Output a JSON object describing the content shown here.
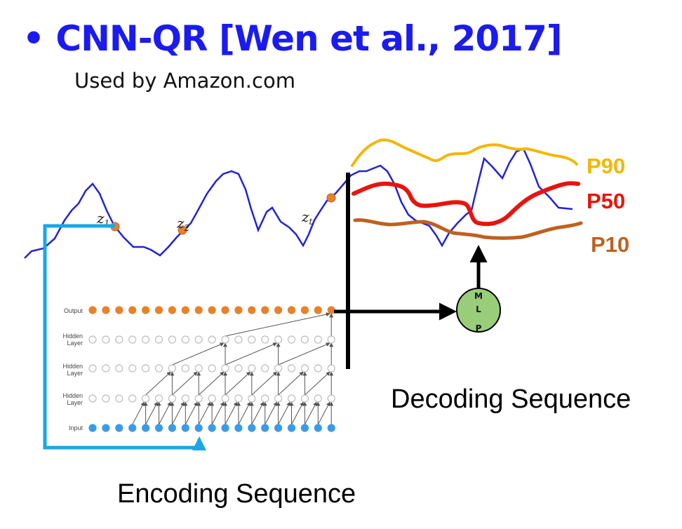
{
  "slide": {
    "bullet": "•",
    "title": "CNN-QR [Wen et al., 2017]",
    "subtitle": "Used by Amazon.com",
    "encoding_label": "Encoding Sequence",
    "decoding_label": "Decoding Sequence"
  },
  "series_points": [
    {
      "letter": "z",
      "sub": "1"
    },
    {
      "letter": "z",
      "sub": "2"
    },
    {
      "letter": "z",
      "sub": "t"
    }
  ],
  "network": {
    "layers": [
      "Output",
      "Hidden Layer",
      "Hidden Layer",
      "Hidden Layer",
      "Input"
    ],
    "nodes_per_layer": 19,
    "layer_colors": {
      "output": "#e8822a",
      "hidden": "#d0d0d0",
      "input": "#3b9be8"
    }
  },
  "mlp": {
    "letters": [
      "M",
      "L",
      "P"
    ],
    "fill": "#9acd7a"
  },
  "quantiles": [
    {
      "label": "P90",
      "color": "#f2b705"
    },
    {
      "label": "P50",
      "color": "#e8140c"
    },
    {
      "label": "P10",
      "color": "#c0601f"
    }
  ],
  "colors": {
    "title": "#1b1bf0",
    "series": "#2323d6",
    "bracket": "#1aa7e6"
  }
}
